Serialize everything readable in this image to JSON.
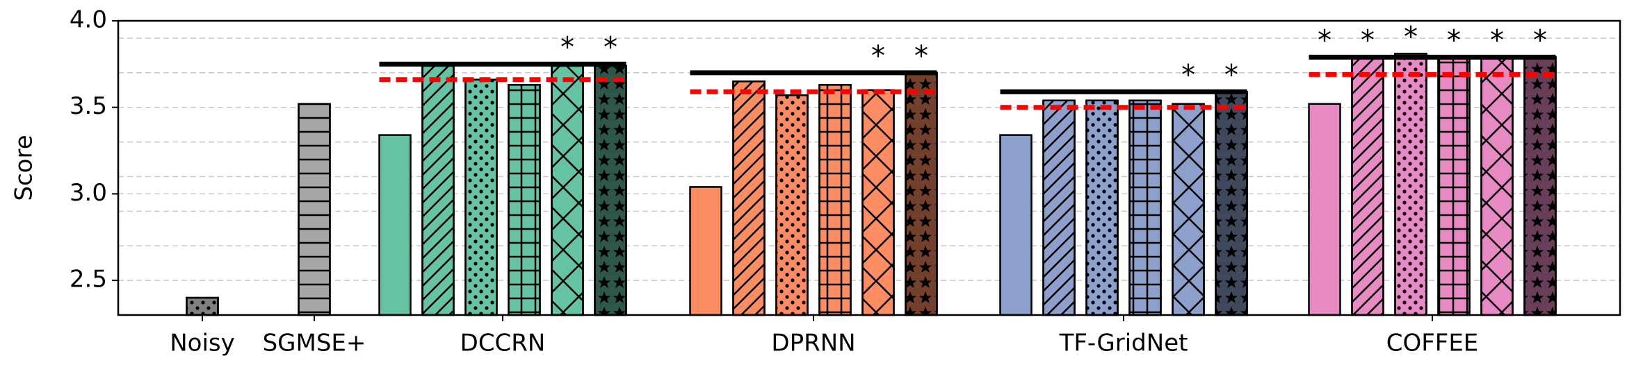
{
  "chart_data": {
    "type": "bar",
    "y_label": "Score",
    "ylim": [
      2.3,
      4.0
    ],
    "yticks": [
      2.5,
      {
        "value": 3,
        "label": "3.0"
      },
      3.5,
      {
        "value": 4,
        "label": "4.0"
      }
    ],
    "yminorticks": [
      2.7,
      2.9,
      3.1,
      3.3,
      3.7,
      3.9
    ],
    "grid": true,
    "significance_marker": "*",
    "groups": [
      {
        "label": "Noisy",
        "color": "#808080",
        "values": [
          2.4
        ],
        "patterns": [
          "dots"
        ]
      },
      {
        "label": "SGMSE+",
        "color": "#a6a6a6",
        "values": [
          3.52
        ],
        "patterns": [
          "hlines"
        ]
      },
      {
        "label": "DCCRN",
        "color": "#66c2a5",
        "values": [
          3.34,
          3.74,
          3.66,
          3.63,
          3.74,
          3.74
        ],
        "patterns": [
          "none",
          "slash",
          "dots",
          "grid",
          "cross",
          "stars"
        ],
        "significant": [
          false,
          false,
          false,
          false,
          true,
          true
        ],
        "black_line": 3.75,
        "red_line": 3.66
      },
      {
        "label": "DPRNN",
        "color": "#fc8d62",
        "values": [
          3.04,
          3.65,
          3.57,
          3.63,
          3.6,
          3.7
        ],
        "patterns": [
          "none",
          "slash",
          "dots",
          "grid",
          "cross",
          "stars"
        ],
        "significant": [
          false,
          false,
          false,
          false,
          true,
          true
        ],
        "black_line": 3.7,
        "red_line": 3.59
      },
      {
        "label": "TF-GridNet",
        "color": "#8da0cb",
        "values": [
          3.34,
          3.54,
          3.54,
          3.54,
          3.52,
          3.59
        ],
        "patterns": [
          "none",
          "slash",
          "dots",
          "grid",
          "cross",
          "stars"
        ],
        "significant": [
          false,
          false,
          false,
          false,
          true,
          true
        ],
        "black_line": 3.59,
        "red_line": 3.5
      },
      {
        "label": "COFFEE",
        "color": "#e78ac3",
        "values": [
          3.52,
          3.79,
          3.81,
          3.79,
          3.79,
          3.79
        ],
        "patterns": [
          "none",
          "slash",
          "dots",
          "grid",
          "cross",
          "stars"
        ],
        "significant": [
          true,
          true,
          true,
          true,
          true,
          true
        ],
        "black_line": 3.79,
        "red_line": 3.69
      }
    ]
  }
}
